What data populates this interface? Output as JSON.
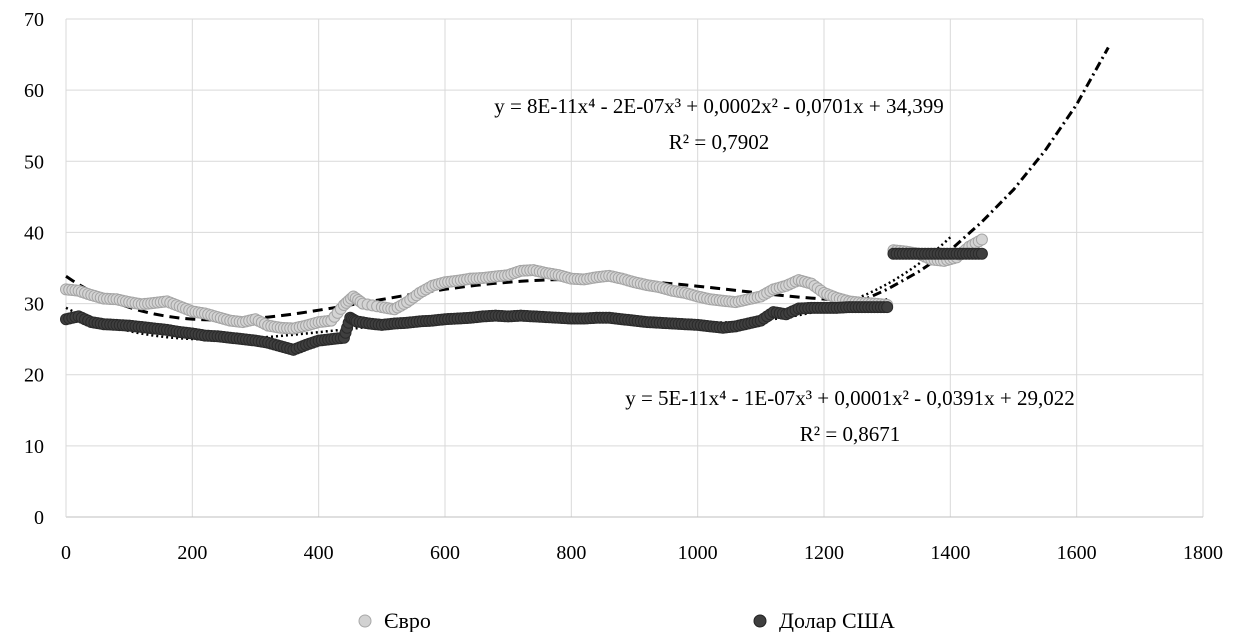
{
  "chart_data": {
    "type": "scatter",
    "title": "",
    "xlabel": "",
    "ylabel": "",
    "xlim": [
      0,
      1800
    ],
    "ylim": [
      0,
      70
    ],
    "x_ticks": [
      0,
      200,
      400,
      600,
      800,
      1000,
      1200,
      1400,
      1600,
      1800
    ],
    "y_ticks": [
      0,
      10,
      20,
      30,
      40,
      50,
      60,
      70
    ],
    "grid": true,
    "legend_position": "bottom",
    "series": [
      {
        "name": "Євро",
        "marker": "open-circle",
        "color": "#c8c8c8",
        "points": [
          [
            0,
            32
          ],
          [
            20,
            31.8
          ],
          [
            40,
            31.2
          ],
          [
            60,
            30.7
          ],
          [
            80,
            30.6
          ],
          [
            100,
            30.2
          ],
          [
            120,
            29.9
          ],
          [
            140,
            30.1
          ],
          [
            160,
            30.3
          ],
          [
            180,
            29.6
          ],
          [
            200,
            28.9
          ],
          [
            220,
            28.6
          ],
          [
            240,
            28.1
          ],
          [
            260,
            27.6
          ],
          [
            280,
            27.4
          ],
          [
            300,
            27.8
          ],
          [
            320,
            26.9
          ],
          [
            340,
            26.6
          ],
          [
            360,
            26.5
          ],
          [
            380,
            26.9
          ],
          [
            400,
            27.4
          ],
          [
            420,
            27.6
          ],
          [
            440,
            29.8
          ],
          [
            455,
            31
          ],
          [
            470,
            30
          ],
          [
            500,
            29.5
          ],
          [
            520,
            29.2
          ],
          [
            540,
            30.2
          ],
          [
            560,
            31.5
          ],
          [
            580,
            32.5
          ],
          [
            600,
            33
          ],
          [
            620,
            33.2
          ],
          [
            640,
            33.5
          ],
          [
            660,
            33.6
          ],
          [
            680,
            33.8
          ],
          [
            700,
            34
          ],
          [
            720,
            34.6
          ],
          [
            740,
            34.7
          ],
          [
            760,
            34.3
          ],
          [
            780,
            34
          ],
          [
            800,
            33.5
          ],
          [
            820,
            33.4
          ],
          [
            840,
            33.7
          ],
          [
            860,
            33.9
          ],
          [
            880,
            33.5
          ],
          [
            900,
            33
          ],
          [
            920,
            32.6
          ],
          [
            940,
            32.3
          ],
          [
            960,
            31.8
          ],
          [
            980,
            31.5
          ],
          [
            1000,
            31
          ],
          [
            1020,
            30.6
          ],
          [
            1040,
            30.4
          ],
          [
            1060,
            30.2
          ],
          [
            1080,
            30.6
          ],
          [
            1100,
            31
          ],
          [
            1120,
            32
          ],
          [
            1140,
            32.5
          ],
          [
            1160,
            33.3
          ],
          [
            1180,
            32.8
          ],
          [
            1200,
            31.5
          ],
          [
            1220,
            30.8
          ],
          [
            1240,
            30.3
          ],
          [
            1260,
            30.1
          ],
          [
            1280,
            30
          ],
          [
            1300,
            29.8
          ],
          [
            1310,
            37.5
          ],
          [
            1330,
            37.3
          ],
          [
            1350,
            37
          ],
          [
            1370,
            36.2
          ],
          [
            1390,
            36
          ],
          [
            1410,
            36.5
          ],
          [
            1430,
            38
          ],
          [
            1450,
            39
          ]
        ],
        "trendline": {
          "type": "poly4",
          "style": "dashed",
          "range": [
            0,
            1300
          ],
          "equation": "y = 8E-11x⁴ - 2E-07x³ + 0,0002x² - 0,0701x + 34,399",
          "r_squared": "R² = 0,7902"
        }
      },
      {
        "name": "Долар США",
        "marker": "filled-circle",
        "color": "#3f3f3f",
        "points": [
          [
            0,
            27.8
          ],
          [
            20,
            28.2
          ],
          [
            40,
            27.4
          ],
          [
            60,
            27.1
          ],
          [
            80,
            27
          ],
          [
            100,
            26.9
          ],
          [
            120,
            26.7
          ],
          [
            140,
            26.5
          ],
          [
            160,
            26.3
          ],
          [
            180,
            26
          ],
          [
            200,
            25.8
          ],
          [
            220,
            25.5
          ],
          [
            240,
            25.4
          ],
          [
            260,
            25.2
          ],
          [
            280,
            25
          ],
          [
            300,
            24.8
          ],
          [
            320,
            24.5
          ],
          [
            340,
            24
          ],
          [
            360,
            23.5
          ],
          [
            380,
            24.2
          ],
          [
            400,
            24.8
          ],
          [
            420,
            25
          ],
          [
            440,
            25.2
          ],
          [
            450,
            28
          ],
          [
            460,
            27.5
          ],
          [
            480,
            27.2
          ],
          [
            500,
            27
          ],
          [
            520,
            27.2
          ],
          [
            540,
            27.3
          ],
          [
            560,
            27.5
          ],
          [
            580,
            27.6
          ],
          [
            600,
            27.8
          ],
          [
            620,
            27.9
          ],
          [
            640,
            28
          ],
          [
            660,
            28.2
          ],
          [
            680,
            28.3
          ],
          [
            700,
            28.2
          ],
          [
            720,
            28.3
          ],
          [
            740,
            28.2
          ],
          [
            760,
            28.1
          ],
          [
            780,
            28
          ],
          [
            800,
            27.9
          ],
          [
            820,
            27.9
          ],
          [
            840,
            28
          ],
          [
            860,
            28
          ],
          [
            880,
            27.8
          ],
          [
            900,
            27.6
          ],
          [
            920,
            27.4
          ],
          [
            940,
            27.3
          ],
          [
            960,
            27.2
          ],
          [
            980,
            27.1
          ],
          [
            1000,
            27
          ],
          [
            1020,
            26.8
          ],
          [
            1040,
            26.6
          ],
          [
            1060,
            26.8
          ],
          [
            1080,
            27.2
          ],
          [
            1100,
            27.6
          ],
          [
            1120,
            28.8
          ],
          [
            1140,
            28.5
          ],
          [
            1160,
            29.3
          ],
          [
            1180,
            29.4
          ],
          [
            1200,
            29.4
          ],
          [
            1220,
            29.4
          ],
          [
            1240,
            29.5
          ],
          [
            1260,
            29.5
          ],
          [
            1280,
            29.5
          ],
          [
            1300,
            29.5
          ],
          [
            1310,
            37
          ],
          [
            1330,
            37
          ],
          [
            1350,
            37
          ],
          [
            1370,
            37
          ],
          [
            1390,
            37
          ],
          [
            1410,
            37
          ],
          [
            1430,
            37
          ],
          [
            1450,
            37
          ]
        ],
        "trendline": {
          "type": "poly4",
          "style": "dotted",
          "range": [
            0,
            1400
          ],
          "equation": "y = 5E-11x⁴ - 1E-07x³ + 0,0001x² - 0,0391x + 29,022",
          "r_squared": "R² = 0,8671"
        }
      },
      {
        "name": "",
        "marker": "none",
        "color": "#000000",
        "line_style": "dash-dot",
        "points": [
          [
            1250,
            30
          ],
          [
            1300,
            32
          ],
          [
            1350,
            34.5
          ],
          [
            1400,
            37.5
          ],
          [
            1450,
            41.5
          ],
          [
            1500,
            46
          ],
          [
            1550,
            51.5
          ],
          [
            1600,
            58
          ],
          [
            1650,
            66
          ]
        ]
      }
    ]
  }
}
